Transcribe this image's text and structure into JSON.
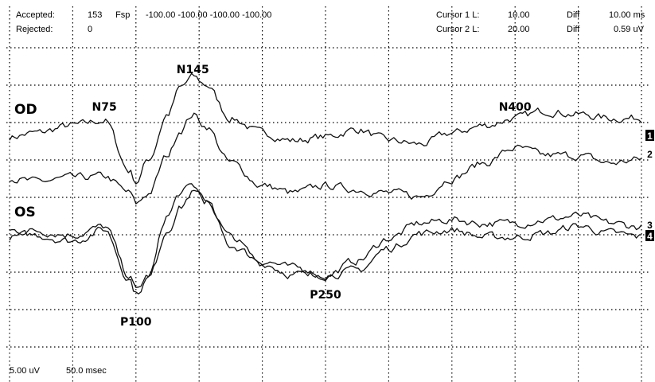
{
  "header": {
    "accepted_label": "Accepted:",
    "accepted_value": "153",
    "rejected_label": "Rejected:",
    "rejected_value": "0",
    "fsp_label": "Fsp",
    "fsp_values": "-100.00 -100.00 -100.00 -100.00",
    "cursor1_label": "Cursor 1 L:",
    "cursor1_value": "10.00",
    "cursor2_label": "Cursor 2 L:",
    "cursor2_value": "20.00",
    "diff_label_1": "Diff",
    "diff_value_1": "10.00 ms",
    "diff_label_2": "Diff",
    "diff_value_2": "0.59 uV"
  },
  "footer": {
    "vertical_scale": "5.00 uV",
    "time_scale": "50.0 msec"
  },
  "chart_data": {
    "type": "line",
    "grid": true,
    "grid_style": "dotted",
    "time_per_division_ms": 50,
    "amplitude_per_division_uV": 5,
    "x_range_ms": [
      0,
      500
    ],
    "group_labels": [
      "OD",
      "OS"
    ],
    "peak_labels": [
      {
        "text": "N75",
        "group": "OD",
        "ms": 75
      },
      {
        "text": "N145",
        "group": "OD",
        "ms": 145
      },
      {
        "text": "N400",
        "group": "OD",
        "ms": 400
      },
      {
        "text": "P100",
        "group": "OS",
        "ms": 100
      },
      {
        "text": "P250",
        "group": "OS",
        "ms": 250
      }
    ],
    "channel_labels": [
      "1",
      "2",
      "3",
      "4"
    ],
    "series": [
      {
        "name": "1",
        "x": [
          0,
          20,
          50,
          75,
          95,
          100,
          110,
          125,
          135,
          145,
          155,
          175,
          200,
          225,
          250,
          275,
          300,
          325,
          350,
          375,
          400,
          425,
          450,
          475,
          500
        ],
        "y": [
          0,
          0.5,
          1.5,
          2.2,
          -4.5,
          -6,
          -3,
          3,
          6.5,
          8,
          7,
          2.5,
          0.5,
          -0.5,
          0,
          1,
          -0.5,
          -1,
          0.5,
          1.5,
          2.5,
          3.5,
          3,
          2.5,
          2.5
        ]
      },
      {
        "name": "2",
        "x": [
          0,
          20,
          50,
          75,
          95,
          100,
          110,
          125,
          135,
          145,
          155,
          175,
          200,
          225,
          250,
          275,
          300,
          325,
          350,
          375,
          400,
          425,
          450,
          475,
          500
        ],
        "y": [
          -2,
          -2.5,
          -2,
          -1.8,
          -4,
          -5.5,
          -4,
          1,
          4.5,
          6.5,
          5,
          0,
          -3,
          -4,
          -3,
          -3.5,
          -4,
          -4.5,
          -2,
          0,
          2,
          1,
          1,
          0,
          0.5
        ]
      },
      {
        "name": "3",
        "x": [
          0,
          20,
          50,
          75,
          95,
          100,
          110,
          125,
          135,
          145,
          155,
          175,
          200,
          225,
          250,
          275,
          300,
          325,
          350,
          375,
          400,
          425,
          450,
          475,
          500
        ],
        "y": [
          0,
          0,
          -0.5,
          0.5,
          -6,
          -8,
          -6,
          2,
          5,
          6,
          4,
          -2,
          -4,
          -5,
          -6,
          -4,
          -1,
          1,
          1.5,
          1,
          1,
          1.5,
          2,
          1,
          0.5
        ]
      },
      {
        "name": "4",
        "x": [
          0,
          20,
          50,
          75,
          95,
          100,
          110,
          125,
          135,
          145,
          155,
          175,
          200,
          225,
          250,
          275,
          300,
          325,
          350,
          375,
          400,
          425,
          450,
          475,
          500
        ],
        "y": [
          0,
          0.3,
          -0.5,
          1,
          -5.5,
          -7.5,
          -5.5,
          1,
          4,
          6,
          5,
          0,
          -3.5,
          -5,
          -5,
          -4.5,
          -1.5,
          0.5,
          1,
          0,
          0,
          0.5,
          1.5,
          0.5,
          0
        ]
      }
    ]
  }
}
